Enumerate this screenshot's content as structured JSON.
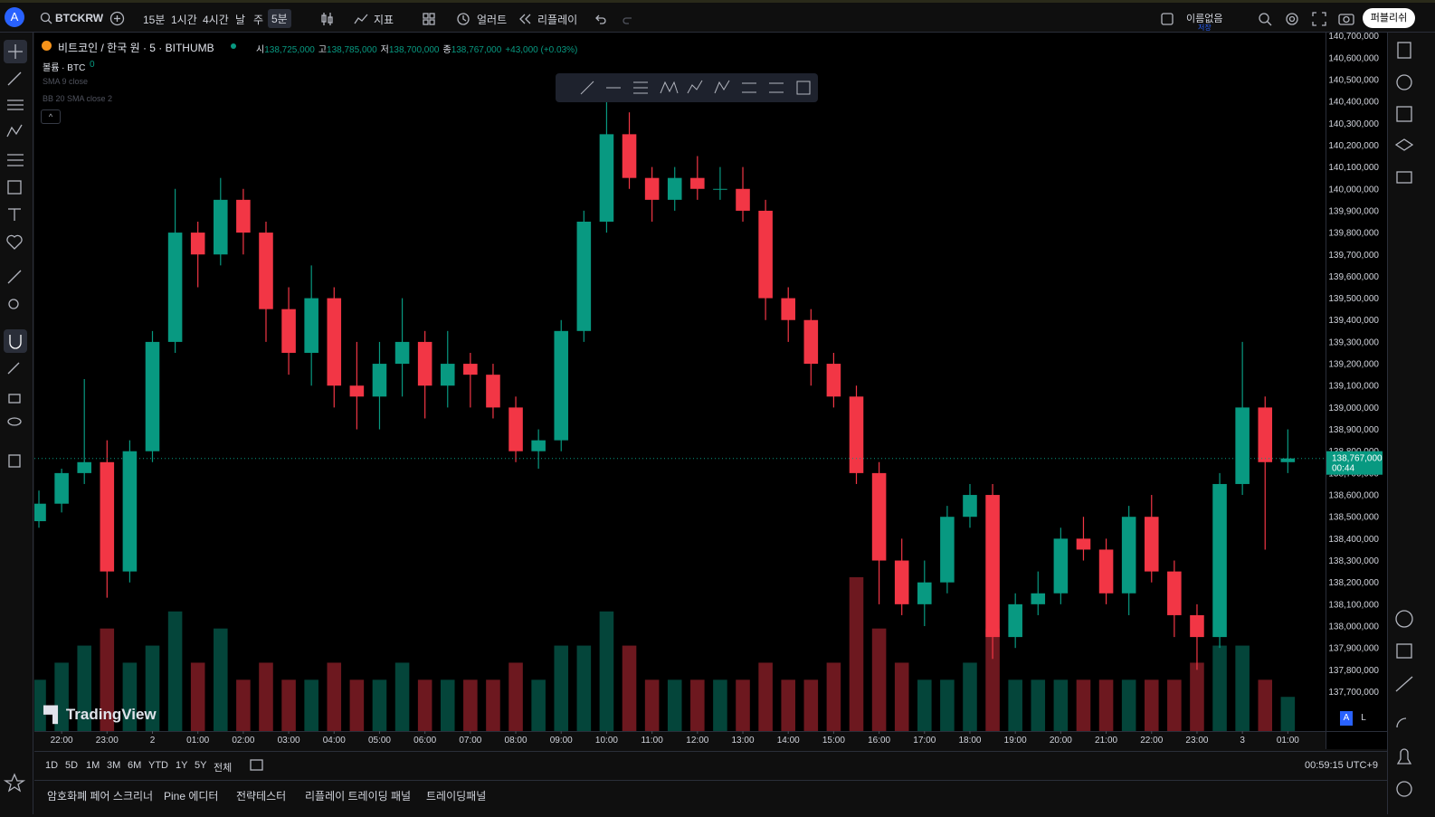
{
  "toolbar": {
    "avatar": "A",
    "symbol": "BTCKRW",
    "intervals": [
      "15분",
      "1시간",
      "4시간",
      "날",
      "주",
      "5분"
    ],
    "indicators": "지표",
    "alert": "얼러트",
    "replay": "리플레이",
    "layout_name": "이름없음",
    "layout_state": "저장",
    "publish": "퍼블리쉬"
  },
  "legend": {
    "symbol": "비트코인 / 한국 원 · 5 · BITHUMB",
    "ohlc": [
      {
        "key": "시",
        "value": "138,725,000"
      },
      {
        "key": "고",
        "value": "138,785,000"
      },
      {
        "key": "저",
        "value": "138,700,000"
      },
      {
        "key": "종",
        "value": "138,767,000"
      }
    ],
    "change": "+43,000 (+0.03%)",
    "volume_label": "볼륨 · BTC",
    "volume_value": "0",
    "indicators": [
      "SMA 9 close",
      "BB 20 SMA close 2"
    ]
  },
  "watermark": "TradingView",
  "scale_buttons": [
    "A",
    "L"
  ],
  "chart_data": {
    "type": "candlestick",
    "up_color": "#089981",
    "down_color": "#f23645",
    "grid": false,
    "x": [
      21.5,
      22,
      22.5,
      23,
      23.5,
      24,
      24.5,
      25,
      25.5,
      26,
      26.5,
      27,
      27.5,
      28,
      28.5,
      29,
      29.5,
      30,
      30.5,
      31,
      31.5,
      32,
      32.5,
      33,
      33.5,
      34,
      34.5,
      35,
      35.5,
      36,
      36.5,
      37,
      37.5,
      38,
      38.5,
      39,
      39.5,
      40,
      40.5,
      41,
      41.5,
      42,
      42.5,
      43,
      43.5,
      44,
      44.5,
      45,
      45.5,
      46,
      46.5,
      47,
      47.5,
      48,
      48.5,
      49
    ],
    "open": [
      138480000,
      138560000,
      138700000,
      138750000,
      138250000,
      138800000,
      139300000,
      139800000,
      139700000,
      139950000,
      139800000,
      139450000,
      139250000,
      139500000,
      139100000,
      139050000,
      139200000,
      139300000,
      139100000,
      139200000,
      139150000,
      139000000,
      138800000,
      138850000,
      139350000,
      139850000,
      140250000,
      140050000,
      139950000,
      140050000,
      140000000,
      140000000,
      139900000,
      139500000,
      139400000,
      139200000,
      139050000,
      138700000,
      138300000,
      138100000,
      138200000,
      138500000,
      138600000,
      137950000,
      138100000,
      138150000,
      138400000,
      138350000,
      138150000,
      138500000,
      138250000,
      138050000,
      137950000,
      138650000,
      139000000,
      138750000
    ],
    "high": [
      138620000,
      138720000,
      139130000,
      138850000,
      138850000,
      139350000,
      140000000,
      139850000,
      140050000,
      140000000,
      139850000,
      139550000,
      139650000,
      139550000,
      139300000,
      139300000,
      139500000,
      139350000,
      139350000,
      139250000,
      139200000,
      139050000,
      138900000,
      139400000,
      139900000,
      140400000,
      140350000,
      140100000,
      140100000,
      140150000,
      140100000,
      140100000,
      139950000,
      139550000,
      139450000,
      139250000,
      139100000,
      138750000,
      138400000,
      138300000,
      138550000,
      138650000,
      138650000,
      138150000,
      138250000,
      138450000,
      138500000,
      138400000,
      138550000,
      138600000,
      138300000,
      138100000,
      138700000,
      139300000,
      139050000,
      138900000
    ],
    "low": [
      138450000,
      138520000,
      138650000,
      138130000,
      138200000,
      138750000,
      139250000,
      139550000,
      139650000,
      139700000,
      139300000,
      139150000,
      139100000,
      139000000,
      138900000,
      138900000,
      139050000,
      138950000,
      139000000,
      139000000,
      138950000,
      138750000,
      138720000,
      138800000,
      139300000,
      139800000,
      140000000,
      139850000,
      139900000,
      139950000,
      139950000,
      139850000,
      139400000,
      139300000,
      139100000,
      139000000,
      138650000,
      138100000,
      138050000,
      138000000,
      138150000,
      138450000,
      137850000,
      137900000,
      138050000,
      138100000,
      138300000,
      138100000,
      138050000,
      138200000,
      137950000,
      137800000,
      137900000,
      138600000,
      138350000,
      138700000
    ],
    "close": [
      138560000,
      138700000,
      138750000,
      138250000,
      138800000,
      139300000,
      139800000,
      139700000,
      139950000,
      139800000,
      139450000,
      139250000,
      139500000,
      139100000,
      139050000,
      139200000,
      139300000,
      139100000,
      139200000,
      139150000,
      139000000,
      138800000,
      138850000,
      139350000,
      139850000,
      140250000,
      140050000,
      139950000,
      140050000,
      140000000,
      140000000,
      139900000,
      139500000,
      139400000,
      139200000,
      139050000,
      138700000,
      138300000,
      138100000,
      138200000,
      138500000,
      138600000,
      137950000,
      138100000,
      138150000,
      138400000,
      138350000,
      138150000,
      138500000,
      138250000,
      138050000,
      137950000,
      138650000,
      139000000,
      138750000,
      138767000
    ],
    "volume": [
      3,
      4,
      5,
      6,
      4,
      5,
      7,
      4,
      6,
      3,
      4,
      3,
      3,
      4,
      3,
      3,
      4,
      3,
      3,
      3,
      3,
      4,
      3,
      5,
      5,
      7,
      5,
      3,
      3,
      3,
      3,
      3,
      4,
      3,
      3,
      4,
      9,
      6,
      4,
      3,
      3,
      4,
      6,
      3,
      3,
      3,
      3,
      3,
      3,
      3,
      3,
      4,
      5,
      5,
      3,
      2
    ],
    "last_price": {
      "value": 138767000,
      "label": "138,767,000"
    },
    "countdown": "00:44",
    "xlim": [
      21.4,
      49.83
    ],
    "xticks": [
      {
        "value": 22,
        "label": "22:00"
      },
      {
        "value": 23,
        "label": "23:00"
      },
      {
        "value": 24,
        "label": "2"
      },
      {
        "value": 25,
        "label": "01:00"
      },
      {
        "value": 26,
        "label": "02:00"
      },
      {
        "value": 27,
        "label": "03:00"
      },
      {
        "value": 28,
        "label": "04:00"
      },
      {
        "value": 29,
        "label": "05:00"
      },
      {
        "value": 30,
        "label": "06:00"
      },
      {
        "value": 31,
        "label": "07:00"
      },
      {
        "value": 32,
        "label": "08:00"
      },
      {
        "value": 33,
        "label": "09:00"
      },
      {
        "value": 34,
        "label": "10:00"
      },
      {
        "value": 35,
        "label": "11:00"
      },
      {
        "value": 36,
        "label": "12:00"
      },
      {
        "value": 37,
        "label": "13:00"
      },
      {
        "value": 38,
        "label": "14:00"
      },
      {
        "value": 39,
        "label": "15:00"
      },
      {
        "value": 40,
        "label": "16:00"
      },
      {
        "value": 41,
        "label": "17:00"
      },
      {
        "value": 42,
        "label": "18:00"
      },
      {
        "value": 43,
        "label": "19:00"
      },
      {
        "value": 44,
        "label": "20:00"
      },
      {
        "value": 45,
        "label": "21:00"
      },
      {
        "value": 46,
        "label": "22:00"
      },
      {
        "value": 47,
        "label": "23:00"
      },
      {
        "value": 48,
        "label": "3"
      },
      {
        "value": 49,
        "label": "01:00"
      }
    ],
    "ylim": [
      137520000,
      140715000
    ],
    "yticks": [
      {
        "value": 137700000,
        "label": "137,700,000"
      },
      {
        "value": 137800000,
        "label": "137,800,000"
      },
      {
        "value": 137900000,
        "label": "137,900,000"
      },
      {
        "value": 138000000,
        "label": "138,000,000"
      },
      {
        "value": 138100000,
        "label": "138,100,000"
      },
      {
        "value": 138200000,
        "label": "138,200,000"
      },
      {
        "value": 138300000,
        "label": "138,300,000"
      },
      {
        "value": 138400000,
        "label": "138,400,000"
      },
      {
        "value": 138500000,
        "label": "138,500,000"
      },
      {
        "value": 138600000,
        "label": "138,600,000"
      },
      {
        "value": 138700000,
        "label": "138,700,000"
      },
      {
        "value": 138800000,
        "label": "138,800,000"
      },
      {
        "value": 138900000,
        "label": "138,900,000"
      },
      {
        "value": 139000000,
        "label": "139,000,000"
      },
      {
        "value": 139100000,
        "label": "139,100,000"
      },
      {
        "value": 139200000,
        "label": "139,200,000"
      },
      {
        "value": 139300000,
        "label": "139,300,000"
      },
      {
        "value": 139400000,
        "label": "139,400,000"
      },
      {
        "value": 139500000,
        "label": "139,500,000"
      },
      {
        "value": 139600000,
        "label": "139,600,000"
      },
      {
        "value": 139700000,
        "label": "139,700,000"
      },
      {
        "value": 139800000,
        "label": "139,800,000"
      },
      {
        "value": 139900000,
        "label": "139,900,000"
      },
      {
        "value": 140000000,
        "label": "140,000,000"
      },
      {
        "value": 140100000,
        "label": "140,100,000"
      },
      {
        "value": 140200000,
        "label": "140,200,000"
      },
      {
        "value": 140300000,
        "label": "140,300,000"
      },
      {
        "value": 140400000,
        "label": "140,400,000"
      },
      {
        "value": 140500000,
        "label": "140,500,000"
      },
      {
        "value": 140600000,
        "label": "140,600,000"
      },
      {
        "value": 140700000,
        "label": "140,700,000"
      }
    ]
  },
  "range_bar": {
    "ranges": [
      "1D",
      "5D",
      "1M",
      "3M",
      "6M",
      "YTD",
      "1Y",
      "5Y",
      "전체"
    ],
    "clock": "00:59:15 UTC+9"
  },
  "bottom_tabs": [
    "암호화폐 페어 스크리너",
    "Pine 에디터",
    "전략테스터",
    "리플레이 트레이딩 패널",
    "트레이딩패널"
  ]
}
